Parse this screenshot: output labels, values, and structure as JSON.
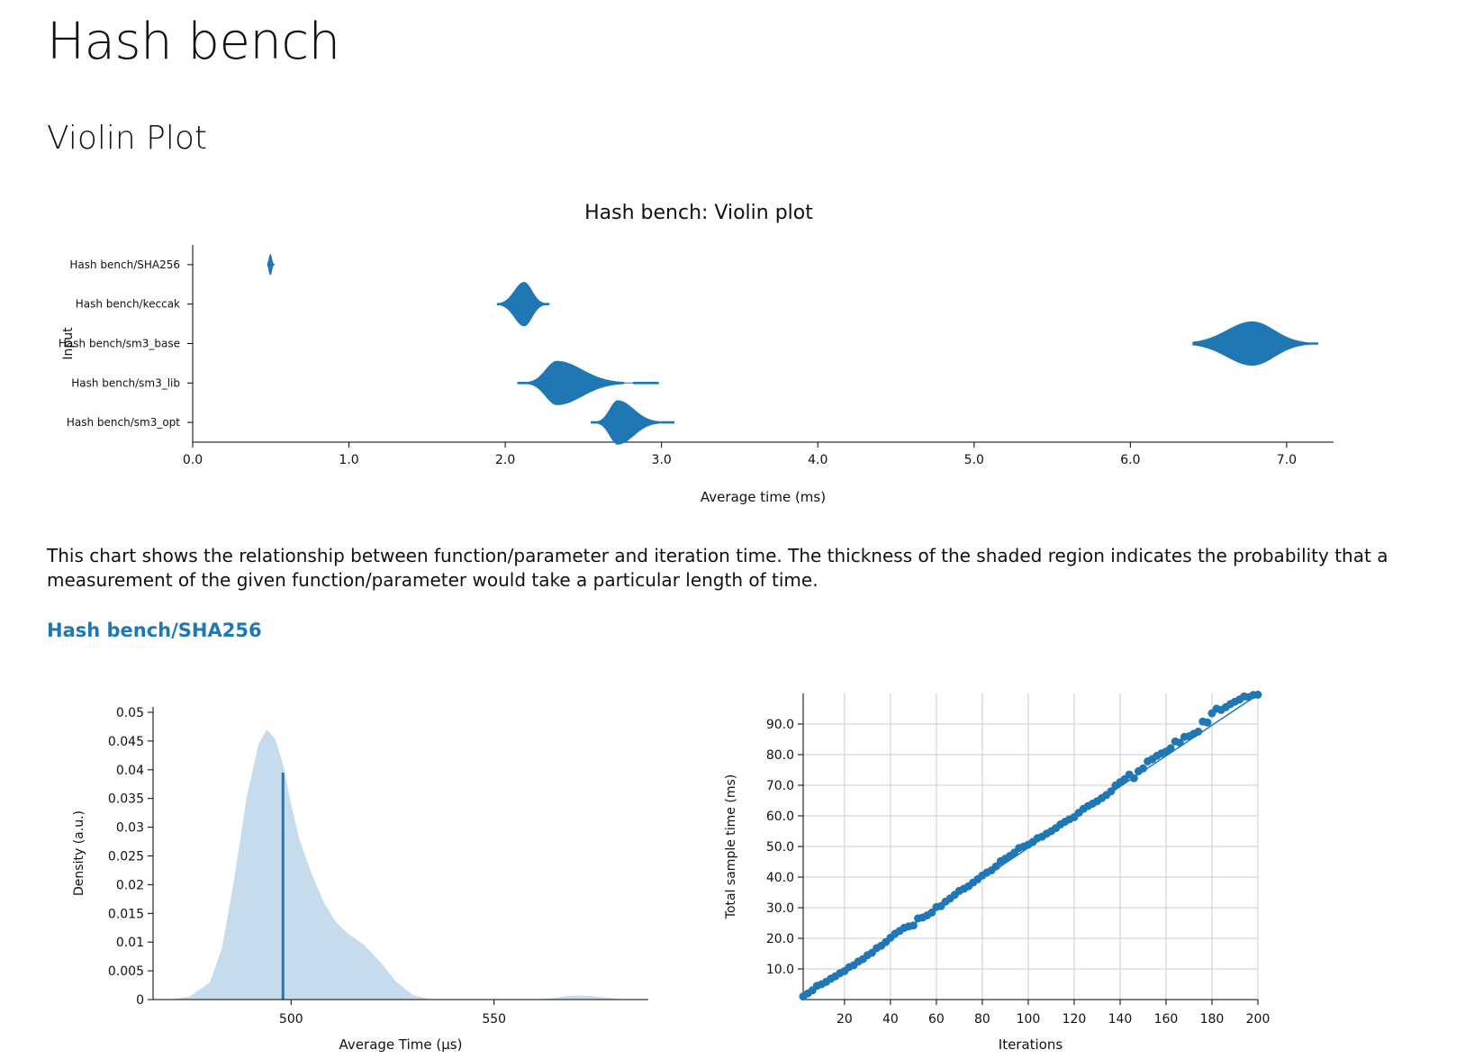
{
  "page": {
    "title": "Hash bench",
    "section_title": "Violin Plot",
    "description": "This chart shows the relationship between function/parameter and iteration time. The thickness of the shaded region indicates the probability that a measurement of the given function/parameter would take a particular length of time.",
    "bench_link": "Hash bench/SHA256"
  },
  "colors": {
    "accent": "#1f77b4",
    "density_fill": "#c6dbec",
    "grid": "#cccccc"
  },
  "chart_data": [
    {
      "type": "violin",
      "title": "Hash bench: Violin plot",
      "xlabel": "Average time (ms)",
      "ylabel": "Input",
      "xlim": [
        0,
        7.3
      ],
      "xticks": [
        0.0,
        1.0,
        2.0,
        3.0,
        4.0,
        5.0,
        6.0,
        7.0
      ],
      "xtick_labels": [
        "0.0",
        "1.0",
        "2.0",
        "3.0",
        "4.0",
        "5.0",
        "6.0",
        "7.0"
      ],
      "categories": [
        "Hash bench/SHA256",
        "Hash bench/keccak",
        "Hash bench/sm3_base",
        "Hash bench/sm3_lib",
        "Hash bench/sm3_opt"
      ],
      "series": [
        {
          "name": "Hash bench/SHA256",
          "min": 0.48,
          "mode": 0.497,
          "max": 0.52,
          "spread_low": 0.008,
          "spread_high": 0.008,
          "max_halfwidth": 0.25,
          "gaps": []
        },
        {
          "name": "Hash bench/keccak",
          "min": 1.95,
          "mode": 2.12,
          "max": 2.28,
          "spread_low": 0.06,
          "spread_high": 0.05,
          "max_halfwidth": 0.55,
          "gaps": []
        },
        {
          "name": "Hash bench/sm3_base",
          "min": 6.4,
          "mode": 6.78,
          "max": 7.2,
          "spread_low": 0.16,
          "spread_high": 0.14,
          "max_halfwidth": 0.55,
          "gaps": []
        },
        {
          "name": "Hash bench/sm3_lib",
          "min": 2.08,
          "mode": 2.33,
          "max": 2.98,
          "spread_low": 0.07,
          "spread_high": 0.16,
          "max_halfwidth": 0.55,
          "gaps": [
            [
              2.76,
              2.82
            ]
          ]
        },
        {
          "name": "Hash bench/sm3_opt",
          "min": 2.55,
          "mode": 2.72,
          "max": 3.08,
          "spread_low": 0.05,
          "spread_high": 0.1,
          "max_halfwidth": 0.55,
          "gaps": []
        }
      ]
    },
    {
      "type": "area",
      "title": "",
      "xlabel": "Average Time (µs)",
      "ylabel": "Density (a.u.)",
      "xlim": [
        466,
        588
      ],
      "ylim": [
        0,
        0.05
      ],
      "xticks": [
        500,
        550
      ],
      "xtick_labels": [
        "500",
        "550"
      ],
      "yticks": [
        0,
        0.005,
        0.01,
        0.015,
        0.02,
        0.025,
        0.03,
        0.035,
        0.04,
        0.045,
        0.05
      ],
      "ytick_labels": [
        "0",
        "0.005",
        "0.01",
        "0.015",
        "0.02",
        "0.025",
        "0.03",
        "0.035",
        "0.04",
        "0.045",
        "0.05"
      ],
      "x": [
        470,
        475,
        480,
        483,
        486,
        489,
        492,
        494,
        496,
        498,
        500,
        502,
        505,
        508,
        511,
        514,
        518,
        522,
        526,
        530,
        534,
        538,
        560,
        565,
        568,
        571,
        574,
        578,
        581,
        585
      ],
      "y": [
        0.0,
        0.0005,
        0.003,
        0.009,
        0.021,
        0.035,
        0.0445,
        0.047,
        0.0455,
        0.041,
        0.034,
        0.028,
        0.022,
        0.017,
        0.0135,
        0.0115,
        0.0095,
        0.0065,
        0.003,
        0.0008,
        0.0001,
        0.0,
        0.0,
        0.0003,
        0.0006,
        0.0007,
        0.0006,
        0.0003,
        0.0001,
        0.0
      ],
      "mean_x": 498,
      "mean_y": 0.0395
    },
    {
      "type": "scatter",
      "title": "",
      "xlabel": "Iterations",
      "ylabel": "Total sample time (ms)",
      "xlim": [
        2,
        200
      ],
      "ylim": [
        0,
        100
      ],
      "xticks": [
        20,
        40,
        60,
        80,
        100,
        120,
        140,
        160,
        180,
        200
      ],
      "xtick_labels": [
        "20",
        "40",
        "60",
        "80",
        "100",
        "120",
        "140",
        "160",
        "180",
        "200"
      ],
      "yticks": [
        10,
        20,
        30,
        40,
        50,
        60,
        70,
        80,
        90
      ],
      "ytick_labels": [
        "10.0",
        "20.0",
        "30.0",
        "40.0",
        "50.0",
        "60.0",
        "70.0",
        "80.0",
        "90.0"
      ],
      "grid": true,
      "x": [
        2,
        4,
        6,
        8,
        10,
        12,
        14,
        16,
        18,
        20,
        22,
        24,
        26,
        28,
        30,
        32,
        34,
        36,
        38,
        40,
        42,
        44,
        46,
        48,
        50,
        52,
        54,
        56,
        58,
        60,
        62,
        64,
        66,
        68,
        70,
        72,
        74,
        76,
        78,
        80,
        82,
        84,
        86,
        88,
        90,
        92,
        94,
        96,
        98,
        100,
        102,
        104,
        106,
        108,
        110,
        112,
        114,
        116,
        118,
        120,
        122,
        124,
        126,
        128,
        130,
        132,
        134,
        136,
        138,
        140,
        142,
        144,
        146,
        148,
        150,
        152,
        154,
        156,
        158,
        160,
        162,
        164,
        166,
        168,
        170,
        172,
        174,
        176,
        178,
        180,
        182,
        184,
        186,
        188,
        190,
        192,
        194,
        196,
        198,
        200
      ],
      "y": [
        1.0,
        2.0,
        3.0,
        4.5,
        5.0,
        5.8,
        6.8,
        7.6,
        8.6,
        9.3,
        10.6,
        11.2,
        12.4,
        13.2,
        14.5,
        15.3,
        16.8,
        17.6,
        18.8,
        20.2,
        21.5,
        22.4,
        23.4,
        23.9,
        24.2,
        26.5,
        26.8,
        27.5,
        28.4,
        30.2,
        30.5,
        32.0,
        33.0,
        34.2,
        35.5,
        36.2,
        37.0,
        38.2,
        39.3,
        40.5,
        41.5,
        42.2,
        43.5,
        45.2,
        46.0,
        46.9,
        48.0,
        49.5,
        50.0,
        50.6,
        51.5,
        52.7,
        53.2,
        54.2,
        55.0,
        56.0,
        57.2,
        58.1,
        58.9,
        59.6,
        61.0,
        62.3,
        63.2,
        64.0,
        64.8,
        65.8,
        66.8,
        68.0,
        69.9,
        71.0,
        72.0,
        73.5,
        72.3,
        74.6,
        75.5,
        77.8,
        78.5,
        79.6,
        80.4,
        81.0,
        82.1,
        84.3,
        83.9,
        85.8,
        86.0,
        86.8,
        87.5,
        90.8,
        90.5,
        93.5,
        95.0,
        94.6,
        95.5,
        96.5,
        97.3,
        98.0,
        99.0,
        98.8,
        99.5,
        99.6
      ],
      "fit": [
        [
          2,
          0.5
        ],
        [
          200,
          99.6
        ]
      ]
    }
  ]
}
